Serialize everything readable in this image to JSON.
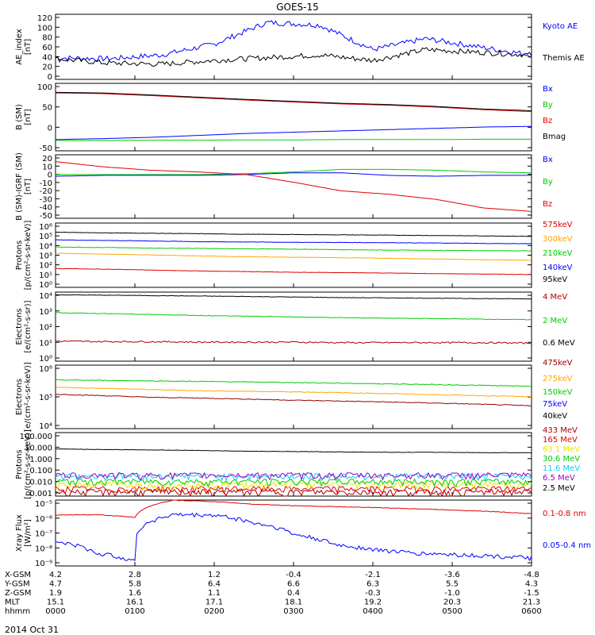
{
  "title": "GOES-15",
  "colors": {
    "black": "#000000",
    "blue": "#0000ff",
    "green": "#00cc00",
    "red": "#e00000",
    "orange": "#ffa500",
    "cyan": "#00d0ff",
    "yellow": "#e6e600",
    "brown": "#990000",
    "purple": "#a000c0",
    "darkred": "#aa0000"
  },
  "chart_data": [
    {
      "type": "line",
      "ylabel": "AE_index\n[nT]",
      "ylim": [
        0,
        120
      ],
      "yticks": [
        "120",
        "100",
        "80",
        "60",
        "40",
        "20",
        "0"
      ],
      "series": [
        {
          "name": "Kyoto AE",
          "color": "blue",
          "shape": "ae",
          "values": [
            40,
            38,
            45,
            65,
            105,
            100,
            55,
            75,
            60,
            45
          ]
        },
        {
          "name": "Themis AE",
          "color": "black",
          "shape": "ae2",
          "values": [
            38,
            30,
            28,
            35,
            40,
            45,
            35,
            55,
            50,
            45
          ]
        }
      ]
    },
    {
      "type": "line",
      "ylabel": "B (SM)\n[nT]",
      "ylim": [
        -60,
        150
      ],
      "yticks": [
        "100",
        "50",
        "0",
        "-50"
      ],
      "series": [
        {
          "name": "Bx",
          "color": "blue",
          "values": [
            -25,
            -22,
            -18,
            -12,
            -6,
            -2,
            2,
            6,
            10,
            14,
            16
          ]
        },
        {
          "name": "By",
          "color": "green",
          "values": [
            -28,
            -28,
            -27,
            -27,
            -26,
            -26,
            -25,
            -25,
            -25,
            -24,
            -24
          ]
        },
        {
          "name": "Bz",
          "color": "red",
          "values": [
            120,
            118,
            112,
            105,
            98,
            92,
            86,
            82,
            76,
            68,
            62
          ]
        },
        {
          "name": "Bmag",
          "color": "black",
          "values": [
            122,
            120,
            114,
            107,
            100,
            94,
            88,
            84,
            78,
            70,
            65
          ]
        }
      ]
    },
    {
      "type": "line",
      "ylabel": "B (SM)-IGRF (SM)\n[nT]",
      "ylim": [
        -52,
        22
      ],
      "yticks": [
        "20",
        "10",
        "0",
        "-10",
        "-20",
        "-30",
        "-40",
        "-50"
      ],
      "series": [
        {
          "name": "Bx",
          "color": "blue",
          "values": [
            -3,
            -2,
            -2,
            -2,
            -1,
            1,
            1,
            -2,
            -3,
            -2,
            -2
          ]
        },
        {
          "name": "By",
          "color": "green",
          "values": [
            -1,
            -1,
            -1,
            -1,
            0,
            2,
            5,
            5,
            4,
            2,
            1
          ]
        },
        {
          "name": "Bz",
          "color": "red",
          "values": [
            14,
            8,
            4,
            2,
            -1,
            -10,
            -20,
            -24,
            -30,
            -40,
            -44
          ]
        }
      ]
    },
    {
      "type": "line",
      "ylabel": "Protons\n[p/(cm²-s-sr-keV)]",
      "log": true,
      "ylim": [
        1,
        2000000
      ],
      "yticks": [
        "10⁶",
        "10⁵",
        "10⁴",
        "10³",
        "10²",
        "10¹",
        "10⁰"
      ],
      "series": [
        {
          "name": "575keV",
          "color": "red",
          "values": [
            70,
            60,
            50,
            40,
            35,
            30,
            28,
            25,
            22,
            20,
            18
          ]
        },
        {
          "name": "300keV",
          "color": "orange",
          "values": [
            2200,
            1800,
            1500,
            1200,
            1000,
            900,
            800,
            700,
            600,
            500,
            450
          ]
        },
        {
          "name": "210keV",
          "color": "green",
          "values": [
            9000,
            8000,
            7000,
            6500,
            6000,
            5500,
            5000,
            4500,
            4200,
            4000,
            3800
          ]
        },
        {
          "name": "140keV",
          "color": "blue",
          "values": [
            45000,
            40000,
            35000,
            30000,
            28000,
            26000,
            25000,
            24000,
            22000,
            20000,
            19000
          ]
        },
        {
          "name": "95keV",
          "color": "black",
          "values": [
            250000,
            220000,
            200000,
            180000,
            160000,
            150000,
            140000,
            130000,
            120000,
            110000,
            100000
          ]
        }
      ]
    },
    {
      "type": "line",
      "ylabel": "Electrons\n[e/(cm²-s-sr)]",
      "log": true,
      "ylim": [
        0.5,
        50000
      ],
      "yticks": [
        "10⁴",
        "10³",
        "10²",
        "10¹",
        "10⁰"
      ],
      "series": [
        {
          "name": "4 MeV",
          "color": "darkred",
          "values": [
            14,
            13,
            13,
            12,
            12,
            12,
            11,
            11,
            11,
            11,
            10
          ]
        },
        {
          "name": "2 MeV",
          "color": "green",
          "values": [
            1600,
            1400,
            1200,
            1000,
            900,
            800,
            700,
            650,
            600,
            550,
            500
          ]
        },
        {
          "name": "0.6 MeV",
          "color": "black",
          "values": [
            32000,
            30000,
            28000,
            26000,
            24000,
            22000,
            20000,
            19000,
            18000,
            17000,
            16000
          ]
        }
      ]
    },
    {
      "type": "line",
      "ylabel": "Electrons\n[e/(cm²-s-sr-keV)]",
      "log": true,
      "ylim": [
        1000,
        1000000
      ],
      "yticks": [
        "10⁶",
        "10⁵",
        "10⁴"
      ],
      "series": [
        {
          "name": "475keV",
          "color": "brown",
          "values": [
            42000,
            36000,
            30000,
            28000,
            25000,
            22000,
            20000,
            18000,
            16000,
            14000,
            12000
          ]
        },
        {
          "name": "275keV",
          "color": "orange",
          "values": [
            90000,
            80000,
            70000,
            62000,
            58000,
            55000,
            50000,
            45000,
            40000,
            36000,
            32000
          ]
        },
        {
          "name": "150keV",
          "color": "green",
          "values": [
            200000,
            190000,
            180000,
            170000,
            160000,
            150000,
            140000,
            130000,
            120000,
            110000,
            100000
          ]
        },
        {
          "name": "75keV",
          "color": "blue",
          "values": []
        },
        {
          "name": "40keV",
          "color": "black",
          "values": []
        }
      ]
    },
    {
      "type": "line",
      "ylabel": "Protons\n[p/(cm²-s-sr-keV)]",
      "log": true,
      "ylim": [
        0.0008,
        900
      ],
      "yticks": [
        "100.000",
        "10.000",
        "1.000",
        "0.100",
        "0.010",
        "0.001"
      ],
      "series": [
        {
          "name": "433 MeV",
          "color": "darkred",
          "values": [
            0.0015,
            0.0015,
            0.0015,
            0.0015,
            0.0015,
            0.0015,
            0.0015,
            0.0015,
            0.0015,
            0.0015,
            0.0015
          ]
        },
        {
          "name": "165 MeV",
          "color": "red",
          "values": [
            0.003,
            0.003,
            0.003,
            0.003,
            0.003,
            0.003,
            0.003,
            0.003,
            0.003,
            0.003,
            0.003
          ]
        },
        {
          "name": "63.1 MeV",
          "color": "yellow",
          "values": [
            0.008,
            0.008,
            0.008,
            0.008,
            0.008,
            0.008,
            0.008,
            0.008,
            0.008,
            0.008,
            0.008
          ]
        },
        {
          "name": "30.6 MeV",
          "color": "green",
          "values": [
            0.015,
            0.015,
            0.015,
            0.015,
            0.015,
            0.015,
            0.015,
            0.015,
            0.015,
            0.015,
            0.015
          ]
        },
        {
          "name": "11.6 MeV",
          "color": "cyan",
          "values": [
            0.05,
            0.05,
            0.05,
            0.05,
            0.05,
            0.05,
            0.05,
            0.05,
            0.05,
            0.05,
            0.05
          ]
        },
        {
          "name": "6.5 MeV",
          "color": "purple",
          "values": [
            0.06,
            0.06,
            0.06,
            0.06,
            0.06,
            0.06,
            0.06,
            0.06,
            0.06,
            0.06,
            0.06
          ]
        },
        {
          "name": "2.5 MeV",
          "color": "black",
          "values": [
            25,
            22,
            20,
            18,
            15,
            14,
            13,
            12,
            12,
            11,
            11
          ]
        }
      ]
    },
    {
      "type": "line",
      "ylabel": "Xray Flux\n[W/m²]",
      "log": true,
      "ylim": [
        1e-09,
        1e-05
      ],
      "yticks": [
        "10⁻⁵",
        "10⁻⁶",
        "10⁻⁷",
        "10⁻⁸",
        "10⁻⁹"
      ],
      "series": [
        {
          "name": "0.1-0.8 nm",
          "color": "red",
          "values": [
            1.2e-06,
            1.3e-06,
            9e-07,
            9.8e-06,
            8e-06,
            5.5e-06,
            4.5e-06,
            4e-06,
            3.5e-06,
            3e-06,
            2.5e-06,
            2e-06,
            1.5e-06
          ]
        },
        {
          "name": "0.05-0.4 nm",
          "color": "blue",
          "values": [
            3e-08,
            6e-09,
            2e-09,
            1.3e-06,
            1.2e-06,
            4e-07,
            8e-08,
            2e-08,
            1e-08,
            6e-09,
            5e-09,
            4e-09,
            3e-09
          ]
        }
      ]
    }
  ],
  "xaxis": {
    "rows": [
      {
        "label": "X-GSM",
        "values": [
          "4.2",
          "2.8",
          "1.2",
          "-0.4",
          "-2.1",
          "-3.6",
          "-4.8"
        ]
      },
      {
        "label": "Y-GSM",
        "values": [
          "4.7",
          "5.8",
          "6.4",
          "6.6",
          "6.3",
          "5.5",
          "4.3"
        ]
      },
      {
        "label": "Z-GSM",
        "values": [
          "1.9",
          "1.6",
          "1.1",
          "0.4",
          "-0.3",
          "-1.0",
          "-1.5"
        ]
      },
      {
        "label": "MLT",
        "values": [
          "15.1",
          "16.1",
          "17.1",
          "18.1",
          "19.2",
          "20.3",
          "21.3"
        ]
      },
      {
        "label": "hhmm",
        "values": [
          "0000",
          "0100",
          "0200",
          "0300",
          "0400",
          "0500",
          "0600"
        ]
      }
    ],
    "date": "2014 Oct 31"
  }
}
